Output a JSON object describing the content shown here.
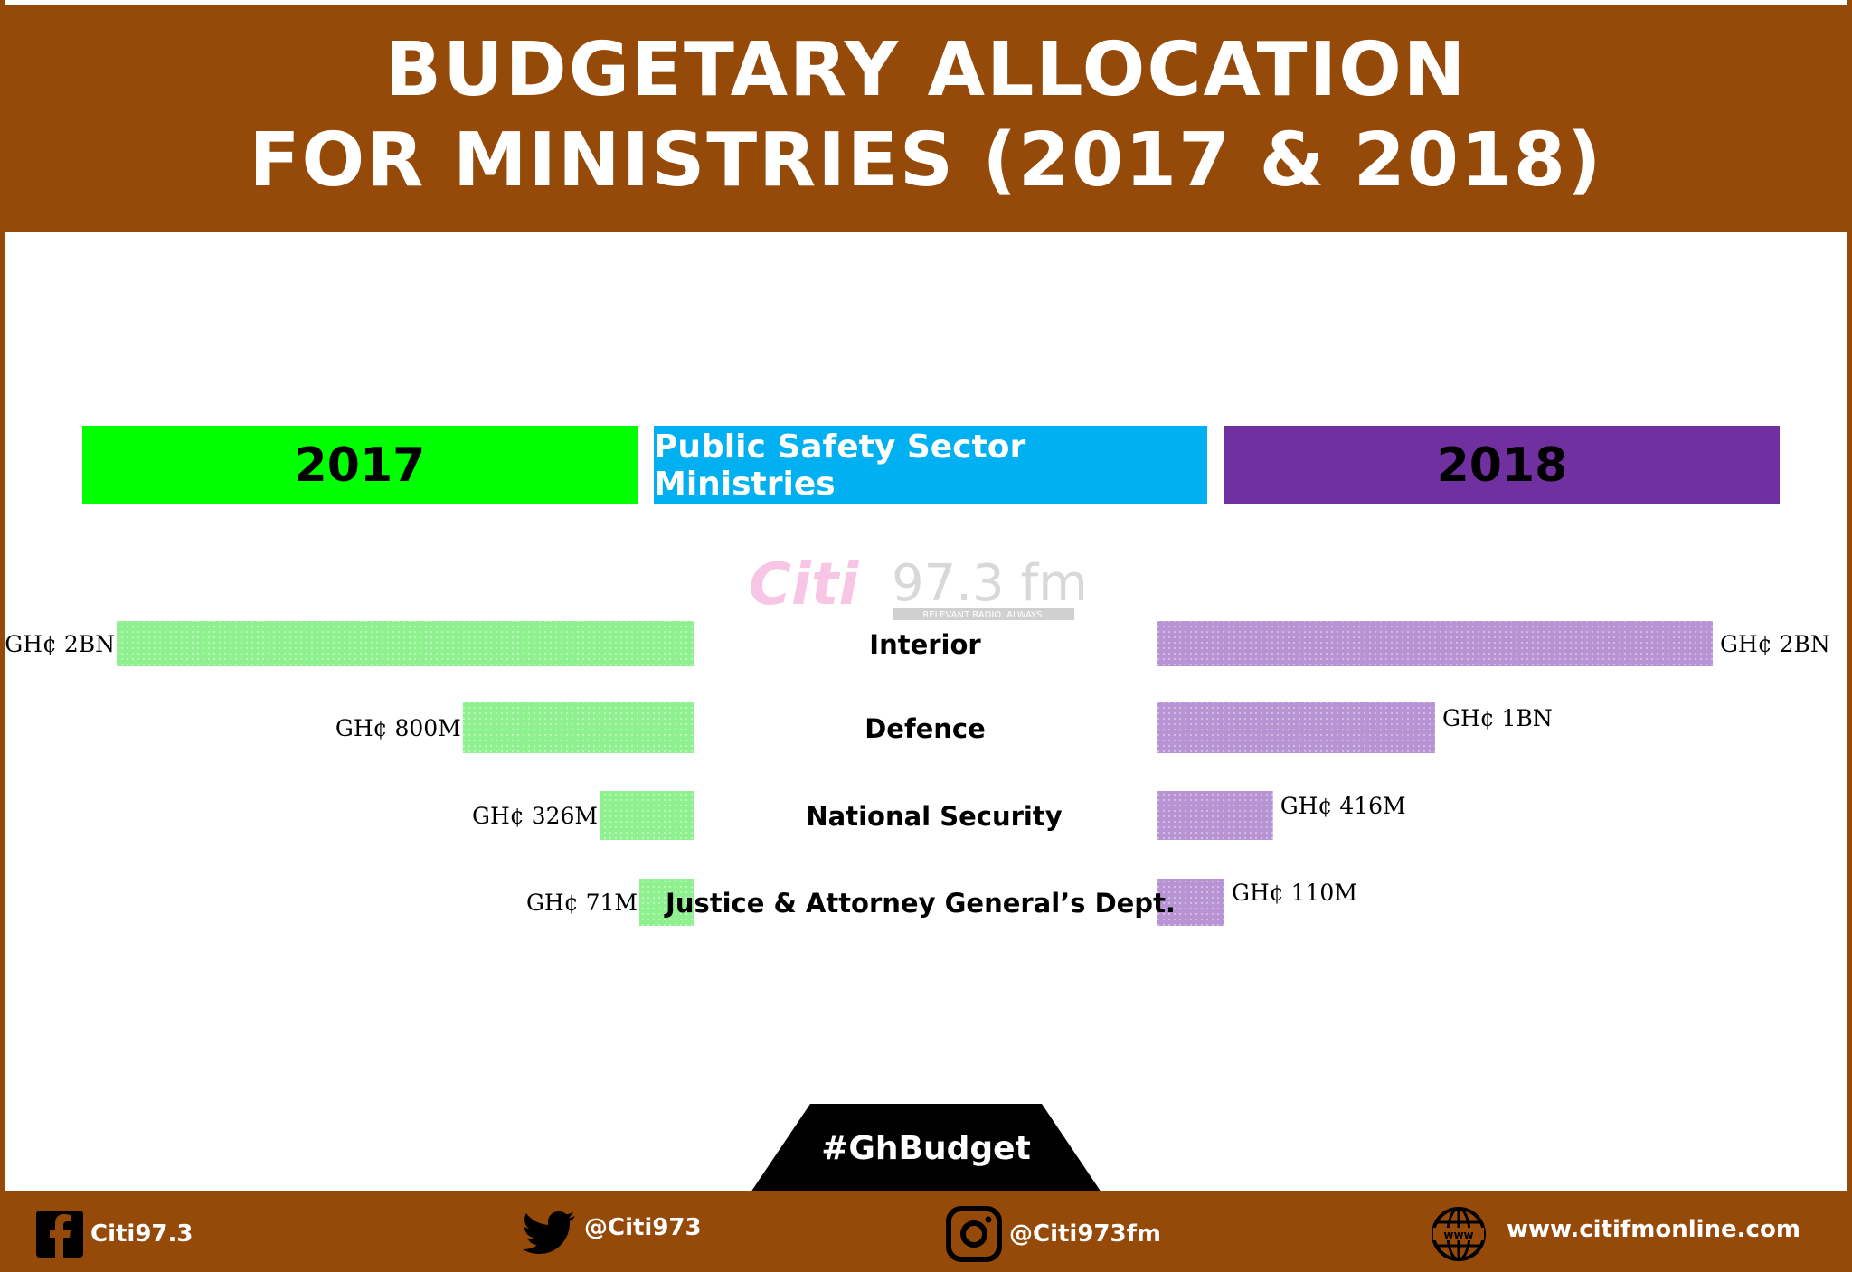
{
  "header": {
    "title_line1": "BUDGETARY ALLOCATION",
    "title_line2": "FOR MINISTRIES (2017 & 2018)"
  },
  "columns": {
    "left": "2017",
    "middle": "Public Safety Sector Ministries",
    "right": "2018"
  },
  "watermark": {
    "brand": "Citi",
    "frequency": "97.3 fm",
    "slogan": "RELEVANT RADIO. ALWAYS."
  },
  "colors": {
    "brown": "#964a0a",
    "green_header": "#00ff00",
    "blue_header": "#00b0f0",
    "purple_header": "#7030a0",
    "green_bar": "#88f088",
    "purple_bar": "#b894d4"
  },
  "chart_data": {
    "type": "bar",
    "orientation": "horizontal-butterfly",
    "categories": [
      "Interior",
      "Defence",
      "National Security",
      "Justice & Attorney General’s Dept."
    ],
    "series": [
      {
        "name": "2017",
        "values": [
          2000,
          800,
          326,
          71
        ],
        "labels": [
          "GH¢ 2BN",
          "GH¢ 800M",
          "GH¢ 326M",
          "GH¢ 71M"
        ],
        "color": "#88f088"
      },
      {
        "name": "2018",
        "values": [
          2000,
          1000,
          416,
          110
        ],
        "labels": [
          "GH¢ 2BN",
          "GH¢ 1BN",
          "GH¢ 416M",
          "GH¢ 110M"
        ],
        "color": "#b894d4"
      }
    ]
  },
  "badge": {
    "hashtag": "#GhBudget"
  },
  "footer": {
    "facebook": "Citi97.3",
    "twitter": "@Citi973",
    "instagram": "@Citi973fm",
    "website": "www.citifmonline.com"
  }
}
